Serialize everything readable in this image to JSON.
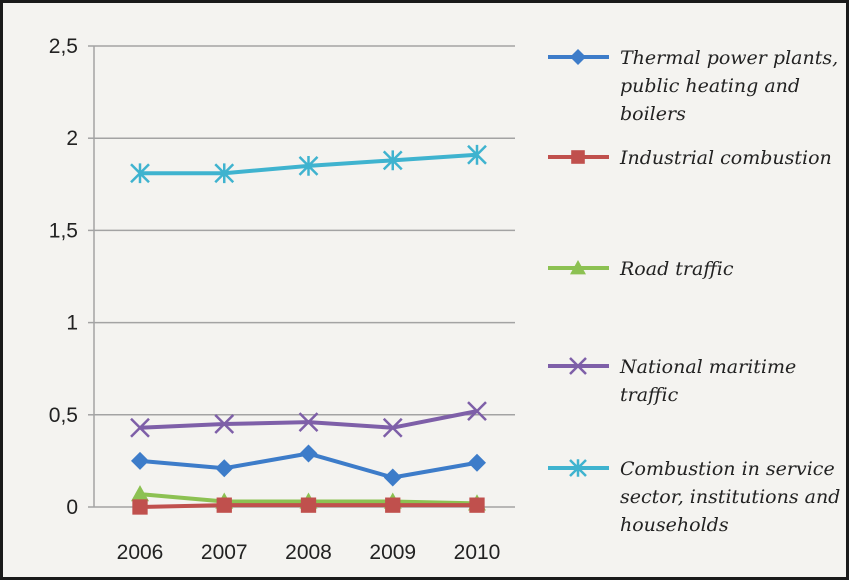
{
  "chart_data": {
    "type": "line",
    "categories": [
      "2006",
      "2007",
      "2008",
      "2009",
      "2010"
    ],
    "ylim": [
      0,
      2.5
    ],
    "yticks": [
      {
        "value": 0,
        "label": "0"
      },
      {
        "value": 0.5,
        "label": "0,5"
      },
      {
        "value": 1,
        "label": "1"
      },
      {
        "value": 1.5,
        "label": "1,5"
      },
      {
        "value": 2,
        "label": "2"
      },
      {
        "value": 2.5,
        "label": "2,5"
      }
    ],
    "grid": "horizontal",
    "legend_position": "right",
    "series": [
      {
        "name": "Thermal power plants, public heating and boilers",
        "legend_lines": [
          "Thermal power plants,",
          "public heating and",
          "boilers"
        ],
        "color": "#3d7cc9",
        "marker": "diamond",
        "values": [
          0.25,
          0.21,
          0.29,
          0.16,
          0.24
        ]
      },
      {
        "name": "Industrial combustion",
        "legend_lines": [
          "Industrial combustion"
        ],
        "color": "#c0504d",
        "marker": "square",
        "values": [
          0.0,
          0.01,
          0.01,
          0.01,
          0.01
        ]
      },
      {
        "name": "Road traffic",
        "legend_lines": [
          "Road traffic"
        ],
        "color": "#8cc152",
        "marker": "triangle",
        "values": [
          0.07,
          0.03,
          0.03,
          0.03,
          0.02
        ]
      },
      {
        "name": "National maritime traffic",
        "legend_lines": [
          "National maritime",
          "traffic"
        ],
        "color": "#7e5fa8",
        "marker": "x",
        "values": [
          0.43,
          0.45,
          0.46,
          0.43,
          0.52
        ]
      },
      {
        "name": "Combustion in service sector, institutions and households",
        "legend_lines": [
          "Combustion in service",
          "sector, institutions and",
          "households"
        ],
        "color": "#3fb3cf",
        "marker": "star",
        "values": [
          1.81,
          1.81,
          1.85,
          1.88,
          1.91
        ]
      }
    ]
  }
}
